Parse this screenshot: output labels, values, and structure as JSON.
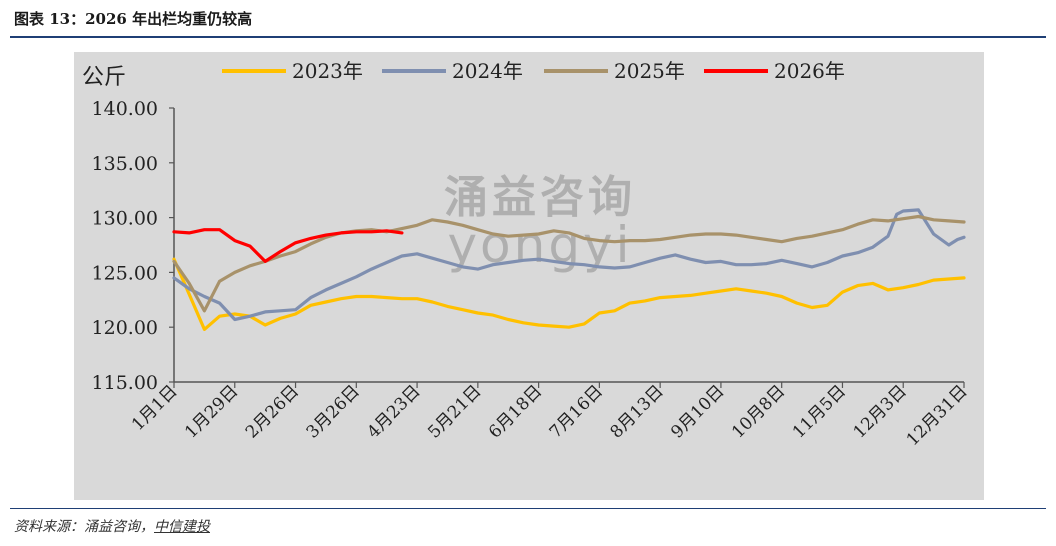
{
  "figure": {
    "title": "图表 13：2026 年出栏均重仍较高",
    "source_prefix": "资料来源：涌益咨询，",
    "source_link": "中信建投",
    "watermark_cn": "涌益咨询",
    "watermark_en": "yongyi"
  },
  "chart_data": {
    "type": "line",
    "ylabel": "公斤",
    "ylim": [
      115,
      140
    ],
    "yticks": [
      "115.00",
      "120.00",
      "125.00",
      "130.00",
      "135.00",
      "140.00"
    ],
    "ytick_values": [
      115,
      120,
      125,
      130,
      135,
      140
    ],
    "xlim": [
      1,
      365
    ],
    "xtick_labels": [
      "1月1日",
      "1月29日",
      "2月26日",
      "3月26日",
      "4月23日",
      "5月21日",
      "6月18日",
      "7月16日",
      "8月13日",
      "9月10日",
      "10月8日",
      "11月5日",
      "12月3日",
      "12月31日"
    ],
    "xtick_days": [
      1,
      29,
      57,
      85,
      113,
      141,
      169,
      197,
      225,
      253,
      281,
      309,
      337,
      365
    ],
    "grid": false,
    "legend_position": "top",
    "series": [
      {
        "name": "2023年",
        "color": "#ffc000",
        "x": [
          1,
          8,
          15,
          22,
          29,
          36,
          43,
          50,
          57,
          64,
          71,
          78,
          85,
          92,
          99,
          106,
          113,
          120,
          127,
          134,
          141,
          148,
          155,
          162,
          169,
          176,
          183,
          190,
          197,
          204,
          211,
          218,
          225,
          232,
          239,
          246,
          253,
          260,
          267,
          274,
          281,
          288,
          295,
          302,
          309,
          316,
          323,
          330,
          337,
          344,
          351,
          358,
          365
        ],
        "y": [
          126.2,
          123.0,
          119.8,
          121.0,
          121.2,
          121.0,
          120.2,
          120.8,
          121.2,
          122.0,
          122.3,
          122.6,
          122.8,
          122.8,
          122.7,
          122.6,
          122.6,
          122.3,
          121.9,
          121.6,
          121.3,
          121.1,
          120.7,
          120.4,
          120.2,
          120.1,
          120.0,
          120.3,
          121.3,
          121.5,
          122.2,
          122.4,
          122.7,
          122.8,
          122.9,
          123.1,
          123.3,
          123.5,
          123.3,
          123.1,
          122.8,
          122.2,
          121.8,
          122.0,
          123.2,
          123.8,
          124.0,
          123.4,
          123.6,
          123.9,
          124.3,
          124.4,
          124.5
        ]
      },
      {
        "name": "2024年",
        "color": "#7f8fb0",
        "x": [
          1,
          8,
          15,
          22,
          29,
          36,
          43,
          50,
          57,
          64,
          71,
          78,
          85,
          92,
          99,
          106,
          113,
          120,
          127,
          134,
          141,
          148,
          155,
          162,
          169,
          176,
          183,
          190,
          197,
          204,
          211,
          218,
          225,
          232,
          239,
          246,
          253,
          260,
          267,
          274,
          281,
          288,
          295,
          302,
          309,
          316,
          323,
          330,
          334,
          337,
          344,
          351,
          358,
          362,
          365
        ],
        "y": [
          124.5,
          123.5,
          122.8,
          122.2,
          120.7,
          121.0,
          121.4,
          121.5,
          121.6,
          122.7,
          123.4,
          124.0,
          124.6,
          125.3,
          125.9,
          126.5,
          126.7,
          126.3,
          125.9,
          125.5,
          125.3,
          125.7,
          125.9,
          126.1,
          126.2,
          126.0,
          125.8,
          125.7,
          125.5,
          125.4,
          125.5,
          125.9,
          126.3,
          126.6,
          126.2,
          125.9,
          126.0,
          125.7,
          125.7,
          125.8,
          126.1,
          125.8,
          125.5,
          125.9,
          126.5,
          126.8,
          127.3,
          128.3,
          130.3,
          130.6,
          130.7,
          128.5,
          127.5,
          128.0,
          128.2
        ]
      },
      {
        "name": "2025年",
        "color": "#a8926a",
        "x": [
          1,
          8,
          15,
          22,
          29,
          36,
          43,
          50,
          57,
          64,
          71,
          78,
          85,
          92,
          99,
          106,
          113,
          120,
          127,
          134,
          141,
          148,
          155,
          162,
          169,
          176,
          183,
          190,
          197,
          204,
          211,
          218,
          225,
          232,
          239,
          246,
          253,
          260,
          267,
          274,
          281,
          288,
          295,
          302,
          309,
          316,
          323,
          330,
          337,
          344,
          351,
          358,
          365
        ],
        "y": [
          126.0,
          124.0,
          121.5,
          124.2,
          125.0,
          125.6,
          126.0,
          126.5,
          126.9,
          127.6,
          128.2,
          128.6,
          128.8,
          128.9,
          128.7,
          129.0,
          129.3,
          129.8,
          129.6,
          129.3,
          128.9,
          128.5,
          128.3,
          128.4,
          128.5,
          128.8,
          128.6,
          128.1,
          127.9,
          127.8,
          127.9,
          127.9,
          128.0,
          128.2,
          128.4,
          128.5,
          128.5,
          128.4,
          128.2,
          128.0,
          127.8,
          128.1,
          128.3,
          128.6,
          128.9,
          129.4,
          129.8,
          129.7,
          129.9,
          130.1,
          129.8,
          129.7,
          129.6
        ]
      },
      {
        "name": "2026年",
        "color": "#ff0000",
        "x": [
          1,
          8,
          15,
          22,
          29,
          36,
          43,
          50,
          57,
          64,
          71,
          78,
          85,
          92,
          99,
          106
        ],
        "y": [
          128.7,
          128.6,
          128.9,
          128.9,
          127.9,
          127.4,
          126.0,
          126.9,
          127.7,
          128.1,
          128.4,
          128.6,
          128.7,
          128.7,
          128.8,
          128.6
        ]
      }
    ]
  }
}
